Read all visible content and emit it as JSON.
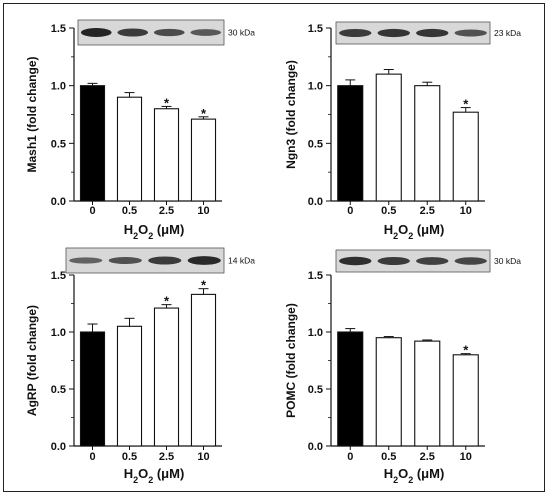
{
  "chart_data": [
    {
      "type": "bar",
      "categories": [
        "0",
        "0.5",
        "2.5",
        "10"
      ],
      "values": [
        1.0,
        0.9,
        0.8,
        0.71
      ],
      "errors": [
        0.02,
        0.04,
        0.02,
        0.02
      ],
      "significant": [
        false,
        false,
        true,
        true
      ],
      "ylabel": "Mash1 (fold change)",
      "xlabel_parts": [
        "H",
        "2",
        "O",
        "2",
        " (μM)"
      ],
      "ylim": [
        0,
        1.5
      ],
      "yticks": [
        "0.0",
        "0.5",
        "1.0",
        "1.5"
      ],
      "blot_label": "30 kDa",
      "bar_colors": [
        "#000000",
        "#ffffff",
        "#ffffff",
        "#ffffff"
      ]
    },
    {
      "type": "bar",
      "categories": [
        "0",
        "0.5",
        "2.5",
        "10"
      ],
      "values": [
        1.0,
        1.1,
        1.0,
        0.77
      ],
      "errors": [
        0.05,
        0.04,
        0.03,
        0.04
      ],
      "significant": [
        false,
        false,
        false,
        true
      ],
      "ylabel": "Ngn3 (fold change)",
      "xlabel_parts": [
        "H",
        "2",
        "O",
        "2",
        " (μM)"
      ],
      "ylim": [
        0,
        1.5
      ],
      "yticks": [
        "0.0",
        "0.5",
        "1.0",
        "1.5"
      ],
      "blot_label": "23 kDa",
      "bar_colors": [
        "#000000",
        "#ffffff",
        "#ffffff",
        "#ffffff"
      ]
    },
    {
      "type": "bar",
      "categories": [
        "0",
        "0.5",
        "2.5",
        "10"
      ],
      "values": [
        1.0,
        1.05,
        1.21,
        1.33
      ],
      "errors": [
        0.07,
        0.07,
        0.03,
        0.05
      ],
      "significant": [
        false,
        false,
        true,
        true
      ],
      "ylabel": "AgRP (fold change)",
      "xlabel_parts": [
        "H",
        "2",
        "O",
        "2",
        " (μM)"
      ],
      "ylim": [
        0,
        1.5
      ],
      "yticks": [
        "0.0",
        "0.5",
        "1.0",
        "1.5"
      ],
      "blot_label": "14 kDa",
      "bar_colors": [
        "#000000",
        "#ffffff",
        "#ffffff",
        "#ffffff"
      ]
    },
    {
      "type": "bar",
      "categories": [
        "0",
        "0.5",
        "2.5",
        "10"
      ],
      "values": [
        1.0,
        0.95,
        0.92,
        0.8
      ],
      "errors": [
        0.03,
        0.01,
        0.01,
        0.01
      ],
      "significant": [
        false,
        false,
        false,
        true
      ],
      "ylabel": "POMC (fold change)",
      "xlabel_parts": [
        "H",
        "2",
        "O",
        "2",
        " (μM)"
      ],
      "ylim": [
        0,
        1.5
      ],
      "yticks": [
        "0.0",
        "0.5",
        "1.0",
        "1.5"
      ],
      "blot_label": "30 kDa",
      "bar_colors": [
        "#000000",
        "#ffffff",
        "#ffffff",
        "#ffffff"
      ]
    }
  ],
  "marks": {
    "significance": "*"
  },
  "colors": {
    "axis": "#111111",
    "blot_background": "#d8d8d8",
    "band": "#1a1a1a",
    "frame": "#222222"
  }
}
